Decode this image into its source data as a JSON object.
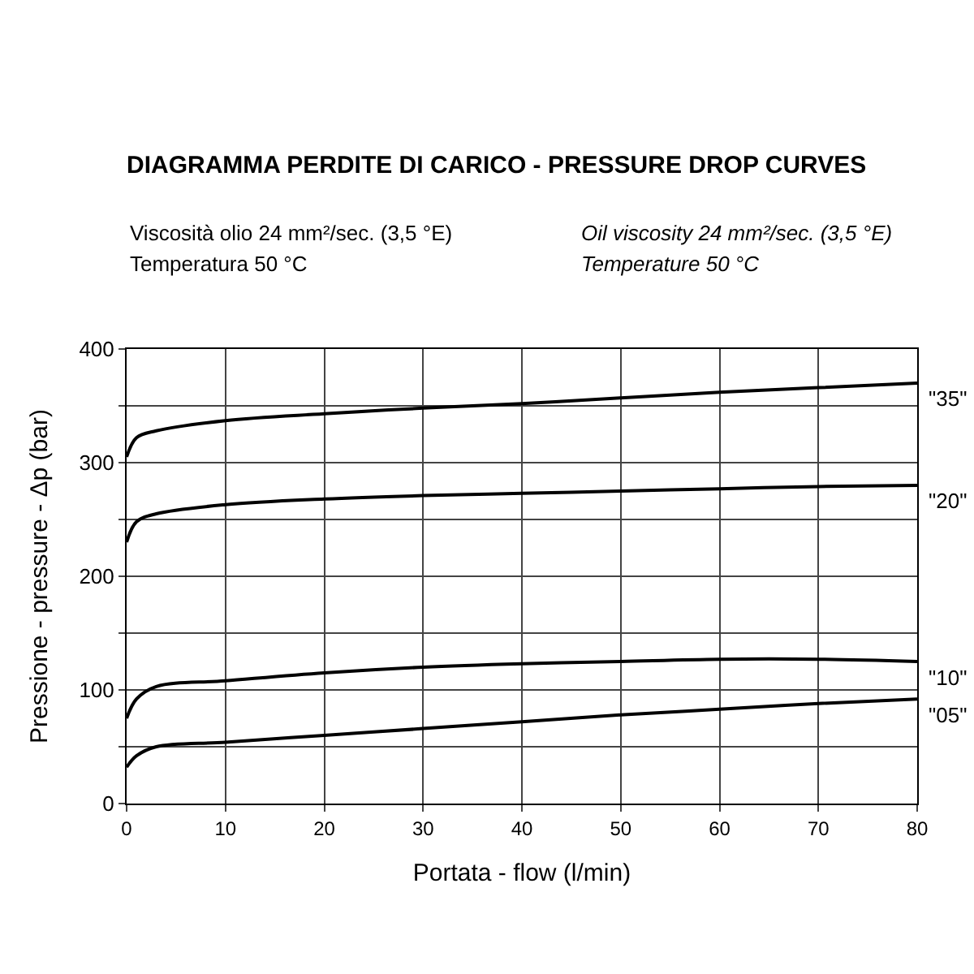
{
  "chart_data": {
    "type": "line",
    "title": "DIAGRAMMA PERDITE DI CARICO - PRESSURE DROP CURVES",
    "annotations": [
      "Viscosità olio 24 mm²/sec. (3,5 °E)",
      "Oil viscosity 24 mm²/sec. (3,5 °E)",
      "Temperatura 50 °C",
      "Temperature 50 °C"
    ],
    "xlabel": "Portata - flow (l/min)",
    "ylabel": "Pressione - pressure - Δp (bar)",
    "x": [
      0,
      1,
      3,
      10,
      20,
      30,
      40,
      50,
      60,
      70,
      80
    ],
    "series": [
      {
        "name": "\"35\"",
        "color": "#000000",
        "values": [
          305,
          322,
          328,
          337,
          343,
          348,
          352,
          357,
          362,
          366,
          370
        ]
      },
      {
        "name": "\"20\"",
        "color": "#000000",
        "values": [
          230,
          248,
          255,
          263,
          268,
          271,
          273,
          275,
          277,
          279,
          280
        ]
      },
      {
        "name": "\"10\"",
        "color": "#000000",
        "values": [
          75,
          92,
          103,
          108,
          115,
          120,
          123,
          125,
          127,
          127,
          125
        ]
      },
      {
        "name": "\"05\"",
        "color": "#000000",
        "values": [
          32,
          42,
          50,
          54,
          60,
          66,
          72,
          78,
          83,
          88,
          92
        ]
      }
    ],
    "xlim": [
      0,
      80
    ],
    "xticks": [
      0,
      10,
      20,
      30,
      40,
      50,
      60,
      70,
      80
    ],
    "ylim": [
      0,
      400
    ],
    "yticks": [
      0,
      {
        "value": 50,
        "label": null
      },
      100,
      {
        "value": 150,
        "label": null
      },
      200,
      {
        "value": 250,
        "label": null
      },
      300,
      {
        "value": 350,
        "label": null
      },
      400
    ],
    "grid": true,
    "legend": false,
    "marker": "none",
    "line_style": "solid"
  }
}
